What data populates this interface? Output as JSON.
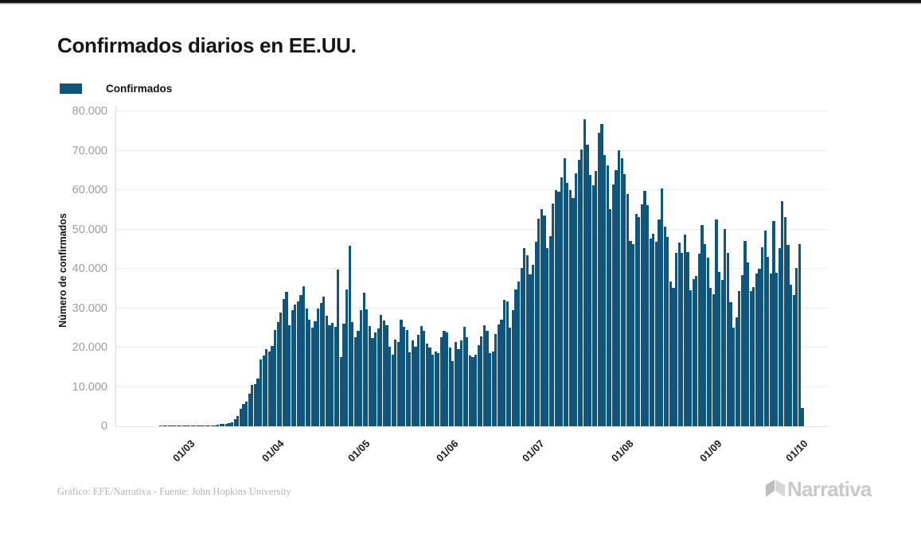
{
  "title": "Confirmados diarios en EE.UU.",
  "legend": {
    "label": "Confirmados",
    "color": "#0f567e"
  },
  "y_axis": {
    "title": "Número de confirmados",
    "ticks": [
      "0",
      "10.000",
      "20.000",
      "30.000",
      "40.000",
      "50.000",
      "60.000",
      "70.000",
      "80.000"
    ]
  },
  "x_axis": {
    "ticks": [
      {
        "label": "01/03",
        "day": 25
      },
      {
        "label": "01/04",
        "day": 56
      },
      {
        "label": "01/05",
        "day": 86
      },
      {
        "label": "01/06",
        "day": 117
      },
      {
        "label": "01/07",
        "day": 147
      },
      {
        "label": "01/08",
        "day": 178
      },
      {
        "label": "01/09",
        "day": 209
      },
      {
        "label": "01/10",
        "day": 239
      }
    ]
  },
  "footer": {
    "credit": "Gráfico: EFE/Narrativa - Fuente: John Hopkins University",
    "logo_text": "Narrativa"
  },
  "chart_data": {
    "type": "bar",
    "title": "Confirmados diarios en EE.UU.",
    "series_name": "Confirmados",
    "ylabel": "Número de confirmados",
    "ylim": [
      0,
      80000
    ],
    "grid": "horizontal",
    "legend_position": "top-left",
    "bar_color": "#0f567e",
    "x_tick_labels": [
      "01/03",
      "01/04",
      "01/05",
      "01/06",
      "01/07",
      "01/08",
      "01/09",
      "01/10"
    ],
    "x_description": "one bar per day, from early February (day 0) to 01/10; tick days given in x_axis.ticks",
    "values": [
      0,
      0,
      0,
      0,
      0,
      0,
      0,
      0,
      0,
      0,
      0,
      0,
      0,
      0,
      0,
      1,
      1,
      1,
      1,
      1,
      1,
      1,
      2,
      3,
      6,
      20,
      25,
      34,
      40,
      77,
      113,
      118,
      136,
      200,
      287,
      351,
      511,
      587,
      644,
      772,
      945,
      1760,
      2650,
      4500,
      5590,
      6210,
      8280,
      10410,
      10710,
      12040,
      17050,
      18070,
      19620,
      19050,
      20360,
      24490,
      26480,
      28820,
      32390,
      34080,
      25590,
      29550,
      30850,
      31710,
      33290,
      35530,
      29860,
      27090,
      25020,
      26680,
      29820,
      31280,
      32920,
      28120,
      25580,
      26240,
      25280,
      39870,
      17590,
      26040,
      34790,
      45960,
      26510,
      22540,
      24330,
      29520,
      33910,
      29740,
      25520,
      22330,
      23840,
      24800,
      28370,
      26910,
      25620,
      20290,
      18120,
      21980,
      21490,
      27140,
      25240,
      24490,
      18870,
      21840,
      20250,
      23280,
      25430,
      24170,
      21030,
      19970,
      18260,
      18970,
      18660,
      22580,
      24270,
      23790,
      19960,
      16570,
      21370,
      19660,
      21900,
      25170,
      22560,
      17920,
      17570,
      18180,
      20650,
      22830,
      25640,
      24190,
      18590,
      18990,
      23510,
      25790,
      27170,
      32220,
      31650,
      25090,
      29560,
      34720,
      36750,
      40180,
      45250,
      43470,
      38610,
      41010,
      46840,
      52830,
      55170,
      53480,
      45280,
      48190,
      56660,
      60020,
      59610,
      63230,
      68070,
      61790,
      60030,
      58080,
      64330,
      67580,
      70260,
      77940,
      71560,
      63840,
      61300,
      64810,
      74500,
      76850,
      68820,
      66170,
      55130,
      61370,
      65110,
      70050,
      68030,
      64020,
      58920,
      47110,
      46320,
      53850,
      53180,
      56330,
      59890,
      56140,
      47780,
      48960,
      46790,
      52510,
      60480,
      50790,
      48070,
      36780,
      35110,
      43960,
      46630,
      44020,
      48690,
      44210,
      34490,
      37410,
      38260,
      43750,
      51120,
      46210,
      42840,
      35170,
      33460,
      52480,
      39110,
      37270,
      50010,
      44110,
      31490,
      24960,
      27610,
      34340,
      38310,
      47140,
      41530,
      34280,
      35290,
      38860,
      40020,
      45490,
      49630,
      43110,
      38790,
      52150,
      38970,
      45230,
      57190,
      53230,
      46010,
      36020,
      33280,
      40120,
      46220,
      4590
    ]
  }
}
